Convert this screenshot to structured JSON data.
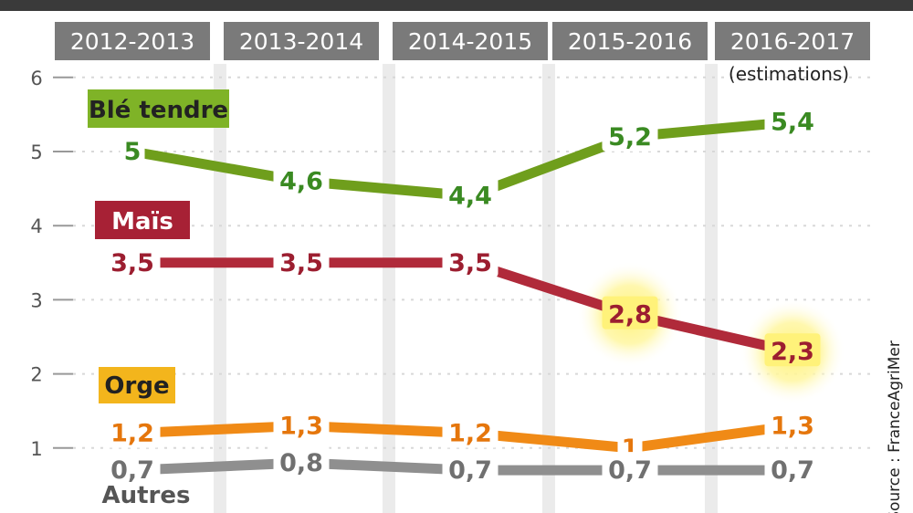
{
  "chart_data": {
    "type": "line",
    "categories": [
      "2012-2013",
      "2013-2014",
      "2014-2015",
      "2015-2016",
      "2016-2017"
    ],
    "category_note": "(estimations)",
    "ylim": [
      0,
      6
    ],
    "yticks": [
      "0",
      "1",
      "2",
      "3",
      "4",
      "5",
      "6"
    ],
    "grid": true,
    "series": [
      {
        "name": "Blé tendre",
        "values": [
          5,
          4.6,
          4.4,
          5.2,
          5.4
        ],
        "labels": [
          "5",
          "4,6",
          "4,4",
          "5,2",
          "5,4"
        ],
        "color": "#6f9e1c",
        "label_color": "#3a8a22",
        "name_bg": "#7fb327",
        "name_fg": "#222222"
      },
      {
        "name": "Maïs",
        "values": [
          3.5,
          3.5,
          3.5,
          2.8,
          2.3
        ],
        "labels": [
          "3,5",
          "3,5",
          "3,5",
          "2,8",
          "2,3"
        ],
        "color": "#b02a3a",
        "label_color": "#9c1e30",
        "name_bg": "#a72135",
        "name_fg": "#ffffff",
        "highlighted": [
          3,
          4
        ]
      },
      {
        "name": "Orge",
        "values": [
          1.2,
          1.3,
          1.2,
          1,
          1.3
        ],
        "labels": [
          "1,2",
          "1,3",
          "1,2",
          "1",
          "1,3"
        ],
        "color": "#f08a16",
        "label_color": "#e5760c",
        "name_bg": "#f3b51c",
        "name_fg": "#222222"
      },
      {
        "name": "Autres",
        "values": [
          0.7,
          0.8,
          0.7,
          0.7,
          0.7
        ],
        "labels": [
          "0,7",
          "0,8",
          "0,7",
          "0,7",
          "0,7"
        ],
        "color": "#8f8f8f",
        "label_color": "#707070",
        "name_bg": "",
        "name_fg": "#555555"
      }
    ],
    "source": "Source : FranceAgriMer"
  },
  "colors": {
    "header_bg": "#7a7a7a",
    "grid_band": "#ebebeb",
    "tick_line": "#999999",
    "highlight": "#fff27a"
  }
}
